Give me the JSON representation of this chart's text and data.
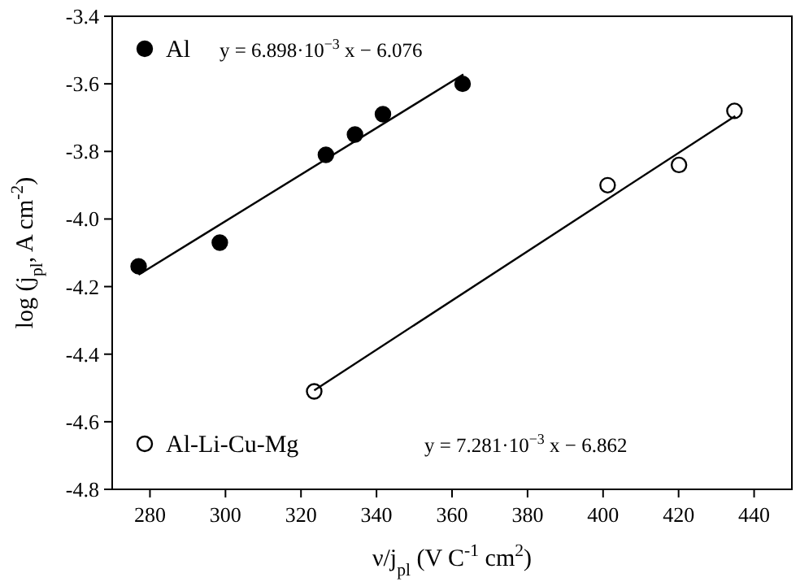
{
  "chart_data": {
    "type": "scatter",
    "xlabel": "ν/j$_{pl}$  (V C$^{-1}$ cm$^{2}$)",
    "ylabel": "log (j$_{pl}$, A cm$^{-2}$)",
    "xlim": [
      270,
      450
    ],
    "xticks": [
      280,
      300,
      320,
      340,
      360,
      380,
      400,
      420,
      440
    ],
    "ylim": [
      -4.8,
      -3.4
    ],
    "yticks": [
      {
        "value": -4.8,
        "label": "-4.8"
      },
      {
        "value": -4.6,
        "label": "-4.6"
      },
      {
        "value": -4.4,
        "label": "-4.4"
      },
      {
        "value": -4.2,
        "label": "-4.2"
      },
      {
        "value": -4,
        "label": "-4.0"
      },
      {
        "value": -3.8,
        "label": "-3.8"
      },
      {
        "value": -3.6,
        "label": "-3.6"
      },
      {
        "value": -3.4,
        "label": "-3.4"
      }
    ],
    "marker": "circle",
    "legend": "left",
    "grid": false,
    "annotations": [
      "y = 6.898·10$^{−3}$ x − 6.076",
      "y = 7.281·10$^{−3}$ x − 6.862"
    ],
    "series": [
      {
        "name": "Al",
        "color": "#000000",
        "x": [
          277,
          298.5,
          326.6,
          334.3,
          341.7,
          362.8
        ],
        "values": [
          -4.14,
          -4.07,
          -3.81,
          -3.75,
          -3.69,
          -3.6
        ]
      },
      {
        "name": "Al-Li-Cu-Mg",
        "color": "#ffffff",
        "x": [
          323.5,
          401.2,
          420.1,
          434.8
        ],
        "values": [
          -4.51,
          -3.9,
          -3.84,
          -3.68
        ]
      },
      {
        "type": "line",
        "marker": "none",
        "color": "#000000",
        "x": [
          277,
          363
        ],
        "values": [
          -4.165,
          -3.572
        ]
      },
      {
        "type": "line",
        "marker": "none",
        "color": "#000000",
        "x": [
          323.5,
          435
        ],
        "values": [
          -4.507,
          -3.695
        ]
      }
    ]
  }
}
